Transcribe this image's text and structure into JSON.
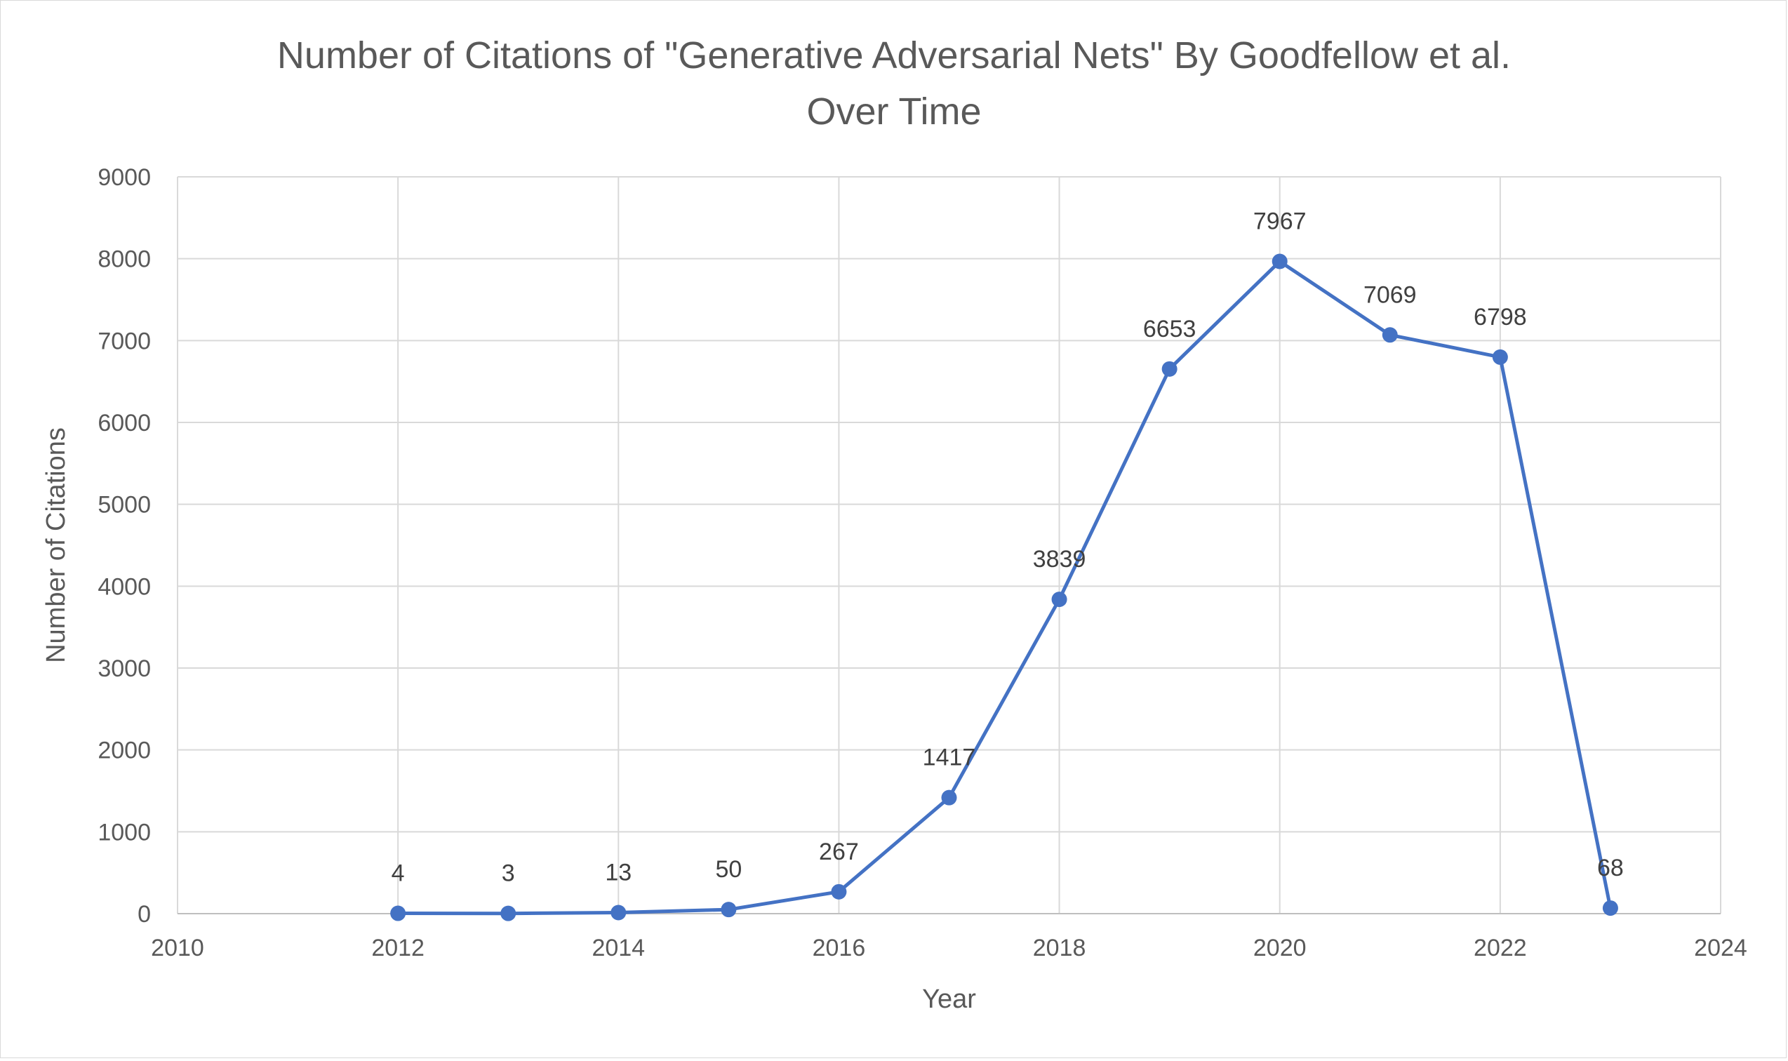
{
  "chart_data": {
    "type": "scatter",
    "title": "Number of Citations of \"Generative Adversarial Nets\" By Goodfellow et al.",
    "subtitle": "Over Time",
    "xlabel": "Year",
    "ylabel": "Number of Citations",
    "xlim": [
      2010,
      2024
    ],
    "ylim": [
      0,
      9000
    ],
    "xticks": [
      2010,
      2012,
      2014,
      2016,
      2018,
      2020,
      2022,
      2024
    ],
    "yticks": [
      0,
      1000,
      2000,
      3000,
      4000,
      5000,
      6000,
      7000,
      8000,
      9000
    ],
    "grid": true,
    "legend": "none",
    "line_color": "#4472c4",
    "series": [
      {
        "x": [
          2012,
          2013,
          2014,
          2015,
          2016,
          2017,
          2018,
          2019,
          2020,
          2021,
          2022,
          2023
        ],
        "y": [
          4,
          3,
          13,
          50,
          267,
          1417,
          3839,
          6653,
          7967,
          7069,
          6798,
          68
        ],
        "labels": [
          "4",
          "3",
          "13",
          "50",
          "267",
          "1417",
          "3839",
          "6653",
          "7967",
          "7069",
          "6798",
          "68"
        ]
      }
    ]
  }
}
